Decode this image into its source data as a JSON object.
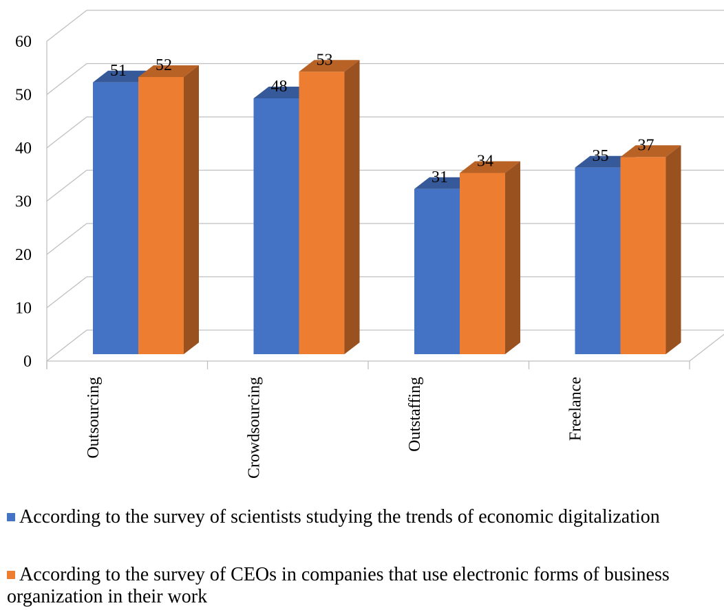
{
  "chart_data": {
    "type": "bar",
    "categories": [
      "Outsourcing",
      "Crowdsourcing",
      "Outstaffing",
      "Freelance"
    ],
    "series": [
      {
        "name": "According to the survey of scientists studying the trends of economic digitalization",
        "values": [
          51,
          48,
          31,
          35
        ],
        "color": "#4472C4"
      },
      {
        "name": "According to the survey of CEOs in companies that use electronic forms of business organization in their work",
        "values": [
          52,
          53,
          34,
          37
        ],
        "color": "#ED7D31"
      }
    ],
    "ylim": [
      0,
      60
    ],
    "yticks": [
      0,
      10,
      20,
      30,
      40,
      50,
      60
    ],
    "grid": true,
    "legend_position": "bottom",
    "data_labels": true
  }
}
